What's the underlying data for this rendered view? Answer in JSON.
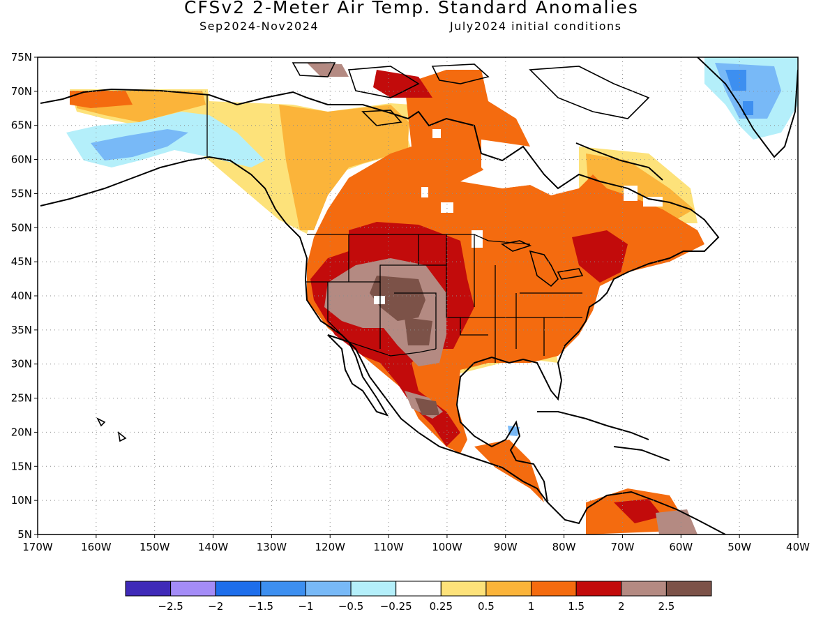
{
  "title": "CFSv2 2-Meter Air Temp. Standard Anomalies",
  "subtitle_left": "Sep2024-Nov2024",
  "subtitle_right": "July2024 initial conditions",
  "map": {
    "lon_range": [
      -170,
      -40
    ],
    "lat_range": [
      5,
      75
    ],
    "grid": "dotted",
    "lat_labels": [
      "75N",
      "70N",
      "65N",
      "60N",
      "55N",
      "50N",
      "45N",
      "40N",
      "35N",
      "30N",
      "25N",
      "20N",
      "15N",
      "10N",
      "5N"
    ],
    "lon_labels": [
      "170W",
      "160W",
      "150W",
      "140W",
      "130W",
      "120W",
      "110W",
      "100W",
      "90W",
      "80W",
      "70W",
      "60W",
      "50W",
      "40W"
    ]
  },
  "colorbar": {
    "colors": [
      "#3f2ab8",
      "#a48cf7",
      "#1e6eeb",
      "#3d8ff0",
      "#78b9f7",
      "#b4effa",
      "#ffffff",
      "#fde27a",
      "#fbb43a",
      "#f46b0f",
      "#c20b0b",
      "#b48a82",
      "#7c5248"
    ],
    "labels": [
      "-2.5",
      "-2",
      "-1.5",
      "-1",
      "-0.5",
      "-0.25",
      "0.25",
      "0.5",
      "1",
      "1.5",
      "2",
      "2.5"
    ]
  }
}
